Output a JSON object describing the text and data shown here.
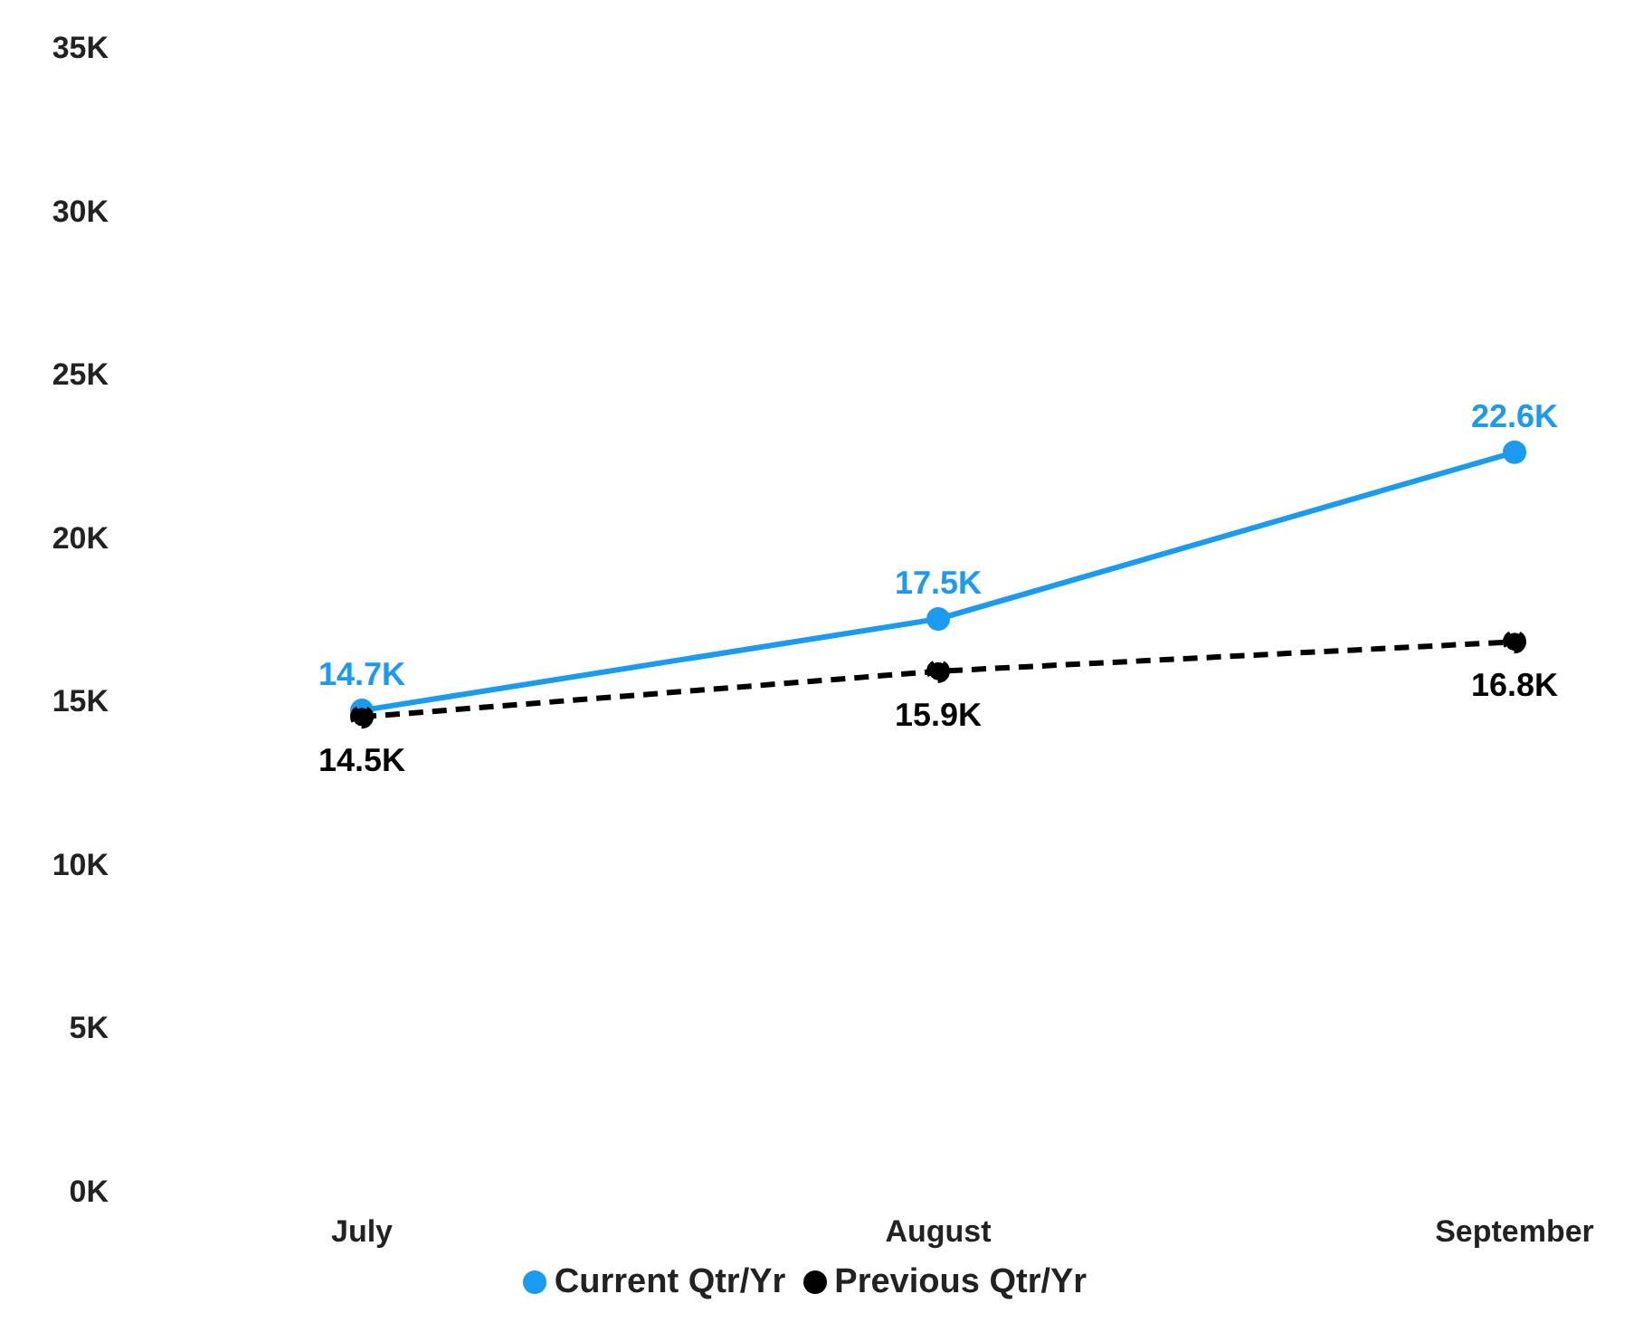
{
  "chart_data": {
    "type": "line",
    "categories": [
      "July",
      "August",
      "September"
    ],
    "series": [
      {
        "name": "Current Qtr/Yr",
        "color": "#1a9bf0",
        "values": [
          14.7,
          17.5,
          22.6
        ],
        "value_labels": [
          "14.7K",
          "17.5K",
          "22.6K"
        ],
        "line_style": "solid"
      },
      {
        "name": "Previous Qtr/Yr",
        "color": "#000000",
        "values": [
          14.5,
          15.9,
          16.8
        ],
        "value_labels": [
          "14.5K",
          "15.9K",
          "16.8K"
        ],
        "line_style": "dashed"
      }
    ],
    "ylim": [
      0,
      35
    ],
    "yticks": [
      {
        "value": 0,
        "label": "0K"
      },
      {
        "value": 5,
        "label": "5K"
      },
      {
        "value": 10,
        "label": "10K"
      },
      {
        "value": 15,
        "label": "15K"
      },
      {
        "value": 20,
        "label": "20K"
      },
      {
        "value": 25,
        "label": "25K"
      },
      {
        "value": 30,
        "label": "30K"
      },
      {
        "value": 35,
        "label": "35K"
      }
    ],
    "grid": false,
    "legend": "bottom",
    "marker": "circle"
  }
}
